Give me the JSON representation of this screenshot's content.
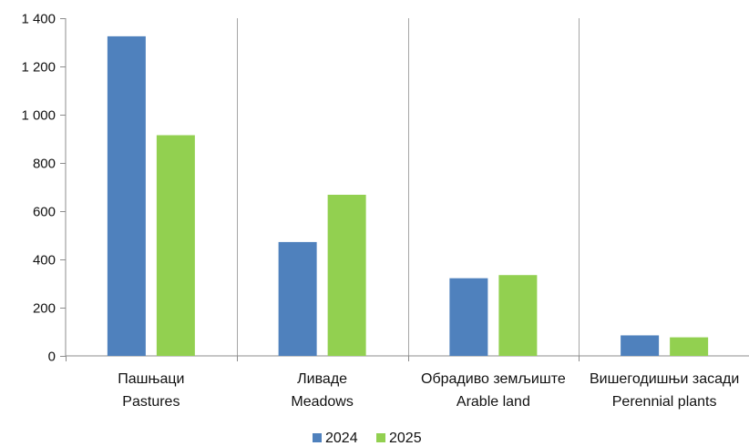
{
  "chart_data": {
    "type": "bar",
    "categories": [
      {
        "line1": "Пашњаци",
        "line2": "Pastures"
      },
      {
        "line1": "Ливаде",
        "line2": "Meadows"
      },
      {
        "line1": "Обрадиво земљиште",
        "line2": "Arable land"
      },
      {
        "line1": "Вишегодишњи засади",
        "line2": "Perennial plants"
      }
    ],
    "series": [
      {
        "name": "2024",
        "color": "#4f81bd",
        "values": [
          1325,
          472,
          322,
          85
        ]
      },
      {
        "name": "2025",
        "color": "#92d050",
        "values": [
          915,
          668,
          335,
          77
        ]
      }
    ],
    "yticks": [
      "0",
      "200",
      "400",
      "600",
      "800",
      "1 000",
      "1 200",
      "1 400"
    ],
    "ylim": [
      0,
      1400
    ],
    "grid": "vertical-between-categories",
    "legend": "bottom-center"
  }
}
